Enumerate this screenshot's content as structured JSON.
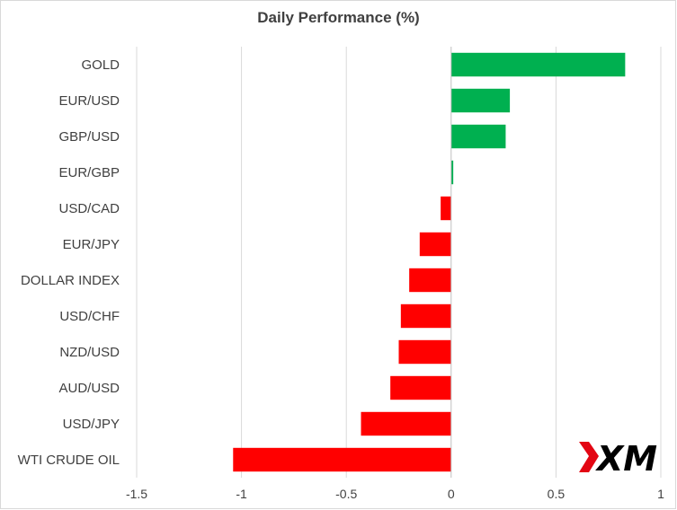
{
  "chart_data": {
    "type": "bar",
    "orientation": "horizontal",
    "title": "Daily Performance (%)",
    "xlabel": "",
    "ylabel": "",
    "categories": [
      "GOLD",
      "EUR/USD",
      "GBP/USD",
      "EUR/GBP",
      "USD/CAD",
      "EUR/JPY",
      "DOLLAR INDEX",
      "USD/CHF",
      "NZD/USD",
      "AUD/USD",
      "USD/JPY",
      "WTI CRUDE OIL"
    ],
    "values": [
      0.83,
      0.28,
      0.26,
      0.01,
      -0.05,
      -0.15,
      -0.2,
      -0.24,
      -0.25,
      -0.29,
      -0.43,
      -1.04
    ],
    "xlim": [
      -1.5,
      1
    ],
    "xticks": [
      -1.5,
      -1,
      -0.5,
      0,
      0.5,
      1
    ],
    "xtick_labels": [
      "-1.5",
      "-1",
      "-0.5",
      "0",
      "0.5",
      "1"
    ],
    "grid": "vertical",
    "legend": "none",
    "colors": {
      "positive": "#00b050",
      "negative": "#ff0000",
      "grid": "#d9d9d9",
      "axis": "#bfbfbf",
      "text": "#404040"
    }
  },
  "logo": {
    "text": "XM",
    "color_mark": "#e30613",
    "color_text": "#000000"
  }
}
